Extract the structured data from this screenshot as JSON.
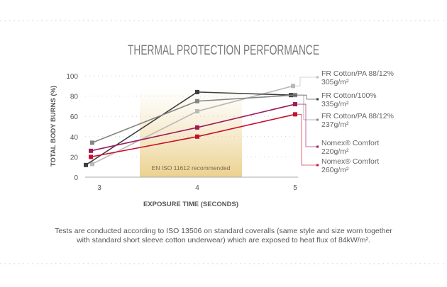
{
  "chart_data": {
    "type": "line",
    "title": "THERMAL PROTECTION PERFORMANCE",
    "xlabel": "EXPOSURE TIME (SECONDS)",
    "ylabel": "TOTAL BODY BURNS (%)",
    "x": [
      3,
      4,
      5
    ],
    "x_ticks": [
      "3",
      "4",
      "5"
    ],
    "y_ticks": [
      "0",
      "20",
      "40",
      "60",
      "80",
      "100"
    ],
    "ylim": [
      0,
      100
    ],
    "xlim": [
      2.93,
      5.05
    ],
    "grid": "horizontal dotted",
    "band": {
      "label": "EN ISO 11612 recommended",
      "from": 3.4,
      "to": 4.5
    },
    "series": [
      {
        "name": "FR Cotton/PA 88/12%",
        "sub": "305g/m²",
        "color": "#b8b8b8",
        "values": [
          13,
          65,
          90
        ]
      },
      {
        "name": "FR Cotton/100%",
        "sub": "335g/m²",
        "color": "#3d3d3d",
        "values": [
          12,
          84,
          81
        ]
      },
      {
        "name": "FR Cotton/PA 88/12%",
        "sub": "237g/m²",
        "color": "#858585",
        "values": [
          34,
          75,
          81
        ]
      },
      {
        "name": "Nomex® Comfort",
        "sub": "220g/m²",
        "color": "#9b1b5e",
        "values": [
          26,
          49,
          72
        ]
      },
      {
        "name": "Nomex® Comfort",
        "sub": "260g/m²",
        "color": "#c8102e",
        "values": [
          20,
          40,
          62
        ]
      }
    ],
    "legend": "right"
  },
  "footnote": {
    "line1": "Tests are conducted according to ISO 13506 on standard coveralls (same style and size worn together",
    "line2": "with standard short sleeve cotton underwear) which are exposed to heat flux of 84kW/m²."
  }
}
